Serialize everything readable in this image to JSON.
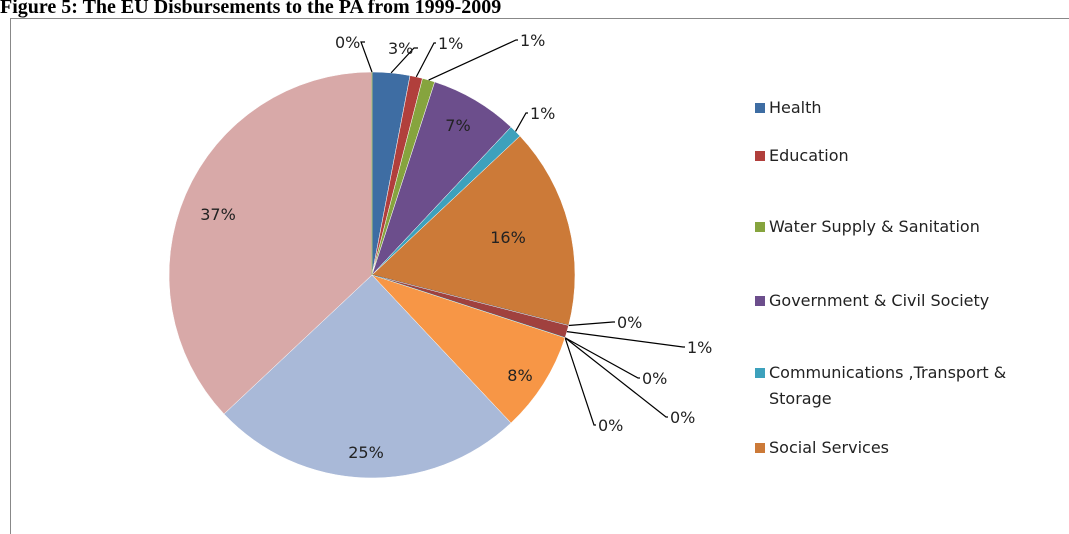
{
  "chart_data": {
    "type": "pie",
    "title": "Figure 5: The EU Disbursements to the PA from 1999-2009",
    "categories": [
      "Health",
      "Education",
      "Water Supply & Sanitation",
      "Government & Civil Society",
      "Communications ,Transport & Storage",
      "Social Services",
      null,
      null,
      null,
      null,
      null,
      null,
      null,
      null,
      null
    ],
    "values": [
      3,
      1,
      1,
      7,
      1,
      16,
      0,
      1,
      0,
      0,
      0,
      8,
      25,
      37,
      0
    ],
    "value_labels": [
      "3%",
      "1%",
      "1%",
      "7%",
      "1%",
      "16%",
      "0%",
      "1%",
      "0%",
      "0%",
      "0%",
      "8%",
      "25%",
      "37%",
      "0%"
    ],
    "colors": [
      "#3E6DA3",
      "#B13F3C",
      "#86A43E",
      "#6C4E8C",
      "#3DA1BC",
      "#CC7A38",
      "#2C4D75",
      "#A0413E",
      "#7A9A3B",
      "#5C4780",
      "#2E8AA3",
      "#F79646",
      "#A9B9D8",
      "#D8A9A8",
      "#A6C178"
    ]
  }
}
